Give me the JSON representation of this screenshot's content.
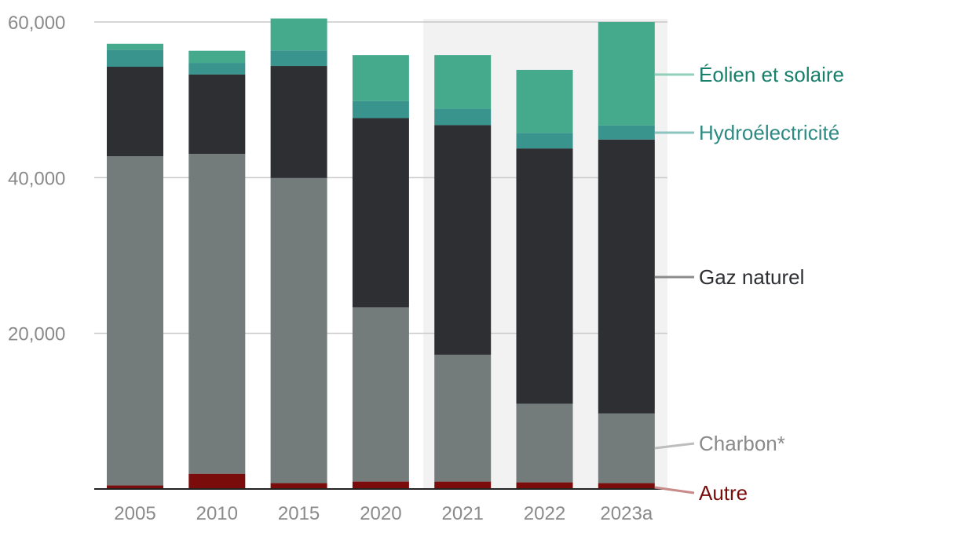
{
  "chart_data": {
    "type": "bar",
    "stacked": true,
    "categories": [
      "2005",
      "2010",
      "2015",
      "2020",
      "2021",
      "2022",
      "2023a"
    ],
    "highlighted_categories": [
      "2021",
      "2022",
      "2023a"
    ],
    "ylim": [
      0,
      60000
    ],
    "yticks": [
      20000,
      40000,
      60000
    ],
    "ytick_labels": [
      "20,000",
      "40,000",
      "60,000"
    ],
    "grid": true,
    "series": [
      {
        "name": "Autre",
        "color": "#7a0c0c",
        "legend_color": "#c98a8a",
        "values": [
          450,
          1950,
          750,
          950,
          950,
          850,
          750
        ]
      },
      {
        "name": "Charbon*",
        "color": "#737b7b",
        "legend_color": "#bdbdbd",
        "values": [
          42300,
          41100,
          39200,
          22400,
          16300,
          10100,
          8950
        ]
      },
      {
        "name": "Gaz naturel",
        "color": "#2d2f33",
        "legend_color": "#8c8c8c",
        "values": [
          11500,
          10200,
          14400,
          24300,
          29500,
          32800,
          35200
        ]
      },
      {
        "name": "Hydroélectricité",
        "color": "#3a948e",
        "legend_color": "#8cc4bf",
        "values": [
          2200,
          1500,
          2000,
          2200,
          2100,
          2000,
          1800
        ]
      },
      {
        "name": "Éolien et solaire",
        "color": "#45aa8c",
        "legend_color": "#8fd0b8",
        "values": [
          750,
          1550,
          4100,
          5900,
          6900,
          8100,
          13300
        ]
      }
    ],
    "legend": [
      {
        "label": "Éolien et solaire",
        "text_color": "#17806a",
        "anchor_series": "Éolien et solaire"
      },
      {
        "label": "Hydroélectricité",
        "text_color": "#2e8a82",
        "anchor_series": "Hydroélectricité"
      },
      {
        "label": "Gaz naturel",
        "text_color": "#2d2f33",
        "anchor_series": "Gaz naturel"
      },
      {
        "label": "Charbon*",
        "text_color": "#8a8a8a",
        "anchor_series": "Charbon*"
      },
      {
        "label": "Autre",
        "text_color": "#7a0c0c",
        "anchor_series": "Autre"
      }
    ]
  }
}
